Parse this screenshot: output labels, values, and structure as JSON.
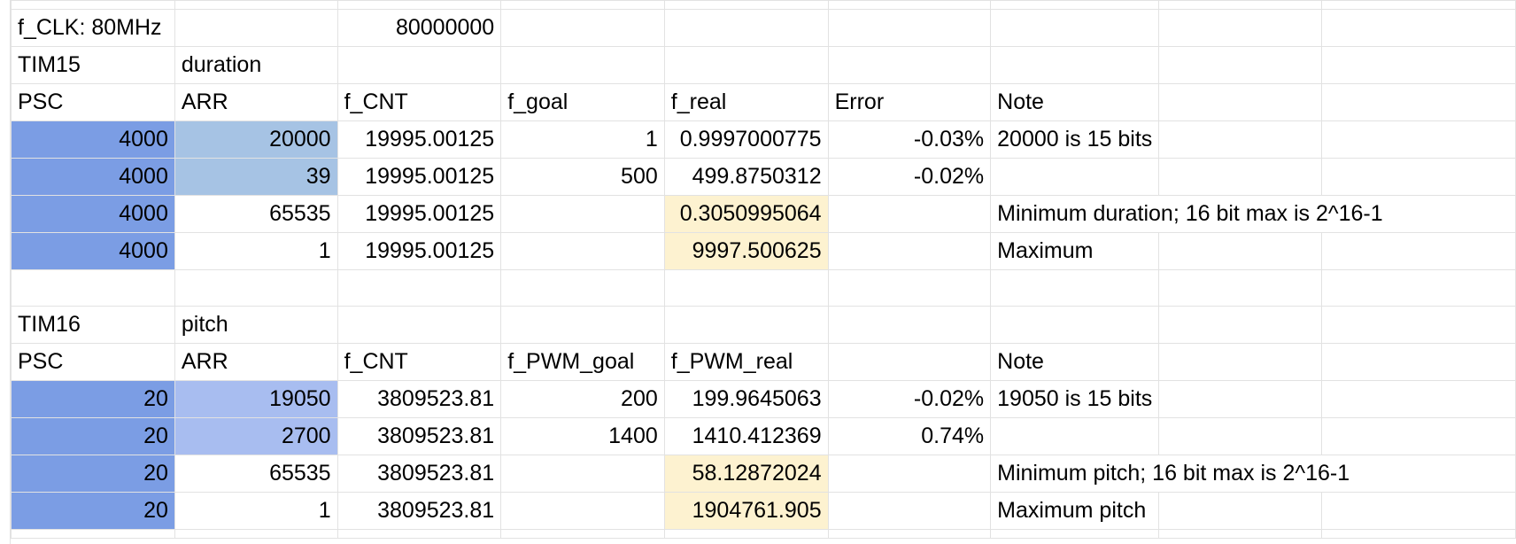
{
  "rows": [
    [
      "f_CLK: 80MHz",
      "",
      "80000000",
      "",
      "",
      "",
      "",
      "",
      ""
    ],
    [
      "TIM15",
      "duration",
      "",
      "",
      "",
      "",
      "",
      "",
      ""
    ],
    [
      "PSC",
      "ARR",
      "f_CNT",
      "f_goal",
      "f_real",
      "Error",
      "Note",
      "",
      ""
    ],
    [
      "4000",
      "20000",
      "19995.00125",
      "1",
      "0.9997000775",
      "-0.03%",
      "20000 is 15 bits",
      "",
      ""
    ],
    [
      "4000",
      "39",
      "19995.00125",
      "500",
      "499.8750312",
      "-0.02%",
      "",
      "",
      ""
    ],
    [
      "4000",
      "65535",
      "19995.00125",
      "",
      "0.3050995064",
      "",
      "Minimum duration; 16 bit max is 2^16-1",
      "",
      ""
    ],
    [
      "4000",
      "1",
      "19995.00125",
      "",
      "9997.500625",
      "",
      "Maximum",
      "",
      ""
    ],
    [
      "",
      "",
      "",
      "",
      "",
      "",
      "",
      "",
      ""
    ],
    [
      "TIM16",
      "pitch",
      "",
      "",
      "",
      "",
      "",
      "",
      ""
    ],
    [
      "PSC",
      "ARR",
      "f_CNT",
      "f_PWM_goal",
      "f_PWM_real",
      "",
      "Note",
      "",
      ""
    ],
    [
      "20",
      "19050",
      "3809523.81",
      "200",
      "199.9645063",
      "-0.02%",
      "19050 is 15 bits",
      "",
      ""
    ],
    [
      "20",
      "2700",
      "3809523.81",
      "1400",
      "1410.412369",
      "0.74%",
      "",
      "",
      ""
    ],
    [
      "20",
      "65535",
      "3809523.81",
      "",
      "58.12872024",
      "",
      "Minimum pitch; 16 bit max is 2^16-1",
      "",
      ""
    ],
    [
      "20",
      "1",
      "3809523.81",
      "",
      "1904761.905",
      "",
      "Maximum pitch",
      "",
      ""
    ]
  ],
  "colors": {
    "psc": "#7b9de4",
    "arr_tim15": "#a6c3e4",
    "arr_tim16": "#a8bdf0",
    "highlight": "#fdf2d0",
    "gridline": "#e2e2e2"
  }
}
